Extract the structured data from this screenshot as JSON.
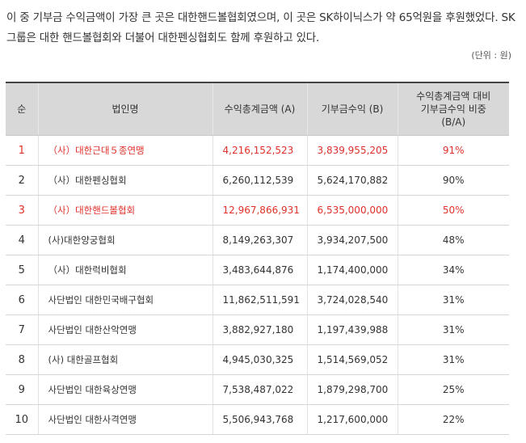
{
  "intro": {
    "line1": "이 중 기부금 수익금액이 가장 큰 곳은 대한핸드볼협회였으며, 이 곳은 SK하이닉스가 약 65억원을 후원했었다. SK",
    "line2": "그룹은 대한 핸드볼협회와 더불어 대한펜싱협회도 함께 후원하고 있다."
  },
  "unit_label": "(단위 : 원)",
  "table": {
    "headers": {
      "rank": "순",
      "org": "법인명",
      "revenue": "수익총계금액 (A)",
      "donation": "기부금수익 (B)",
      "ratio_line1": "수익총계금액 대비",
      "ratio_line2": "기부금수익 비중",
      "ratio_line3": "(B/A)"
    },
    "rows": [
      {
        "rank": "1",
        "org": "（사）대한근대５종연맹",
        "revenue": "4,216,152,523",
        "donation": "3,839,955,205",
        "ratio": "91%",
        "highlight": true
      },
      {
        "rank": "2",
        "org": "（사）대한펜싱협회",
        "revenue": "6,260,112,539",
        "donation": "5,624,170,882",
        "ratio": "90%",
        "highlight": false
      },
      {
        "rank": "3",
        "org": "（사）대한핸드볼협회",
        "revenue": "12,967,866,931",
        "donation": "6,535,000,000",
        "ratio": "50%",
        "highlight": true
      },
      {
        "rank": "4",
        "org": "(사)대한양궁협회",
        "revenue": "8,149,263,307",
        "donation": "3,934,207,500",
        "ratio": "48%",
        "highlight": false
      },
      {
        "rank": "5",
        "org": "（사）대한럭비협회",
        "revenue": "3,483,644,876",
        "donation": "1,174,400,000",
        "ratio": "34%",
        "highlight": false
      },
      {
        "rank": "6",
        "org": "사단법인 대한민국배구협회",
        "revenue": "11,862,511,591",
        "donation": "3,724,028,540",
        "ratio": "31%",
        "highlight": false
      },
      {
        "rank": "7",
        "org": "사단법인 대한산악연맹",
        "revenue": "3,882,927,180",
        "donation": "1,197,439,988",
        "ratio": "31%",
        "highlight": false
      },
      {
        "rank": "8",
        "org": "(사) 대한골프협회",
        "revenue": "4,945,030,325",
        "donation": "1,514,569,052",
        "ratio": "31%",
        "highlight": false
      },
      {
        "rank": "9",
        "org": "사단법인 대한육상연맹",
        "revenue": "7,538,487,022",
        "donation": "1,879,298,700",
        "ratio": "25%",
        "highlight": false
      },
      {
        "rank": "10",
        "org": "사단법인 대한사격연맹",
        "revenue": "5,506,943,768",
        "donation": "1,217,600,000",
        "ratio": "22%",
        "highlight": false
      }
    ]
  }
}
